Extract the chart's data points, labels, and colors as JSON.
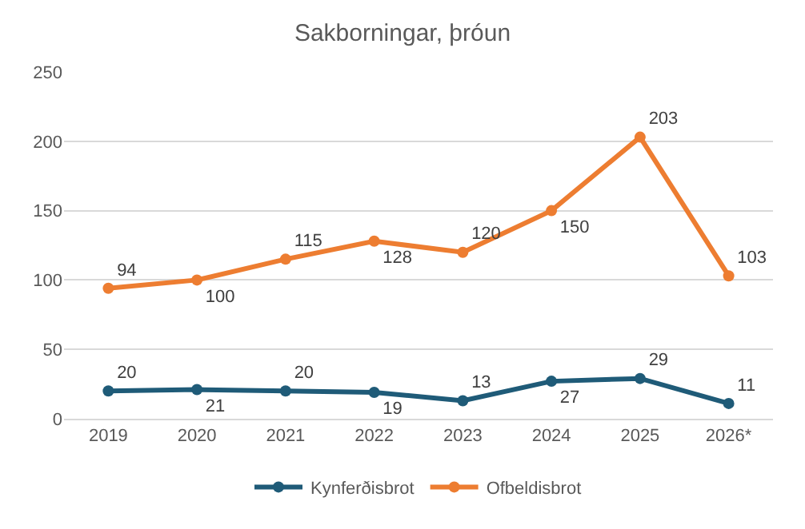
{
  "chart_data": {
    "type": "line",
    "title": "Sakborningar, þróun",
    "categories": [
      "2019",
      "2020",
      "2021",
      "2022",
      "2023",
      "2024",
      "2025",
      "2026*"
    ],
    "series": [
      {
        "name": "Kynferðisbrot",
        "color": "#1f5b78",
        "values": [
          20,
          21,
          20,
          19,
          13,
          27,
          29,
          11
        ]
      },
      {
        "name": "Ofbeldisbrot",
        "color": "#ed7d31",
        "values": [
          94,
          100,
          115,
          128,
          120,
          150,
          203,
          103
        ]
      }
    ],
    "ylim": [
      0,
      250
    ],
    "yticks": [
      0,
      50,
      100,
      150,
      200,
      250
    ],
    "grid": "y",
    "legend": "bottom",
    "marker": "circle",
    "line_style": "solid",
    "data_labels": true
  }
}
